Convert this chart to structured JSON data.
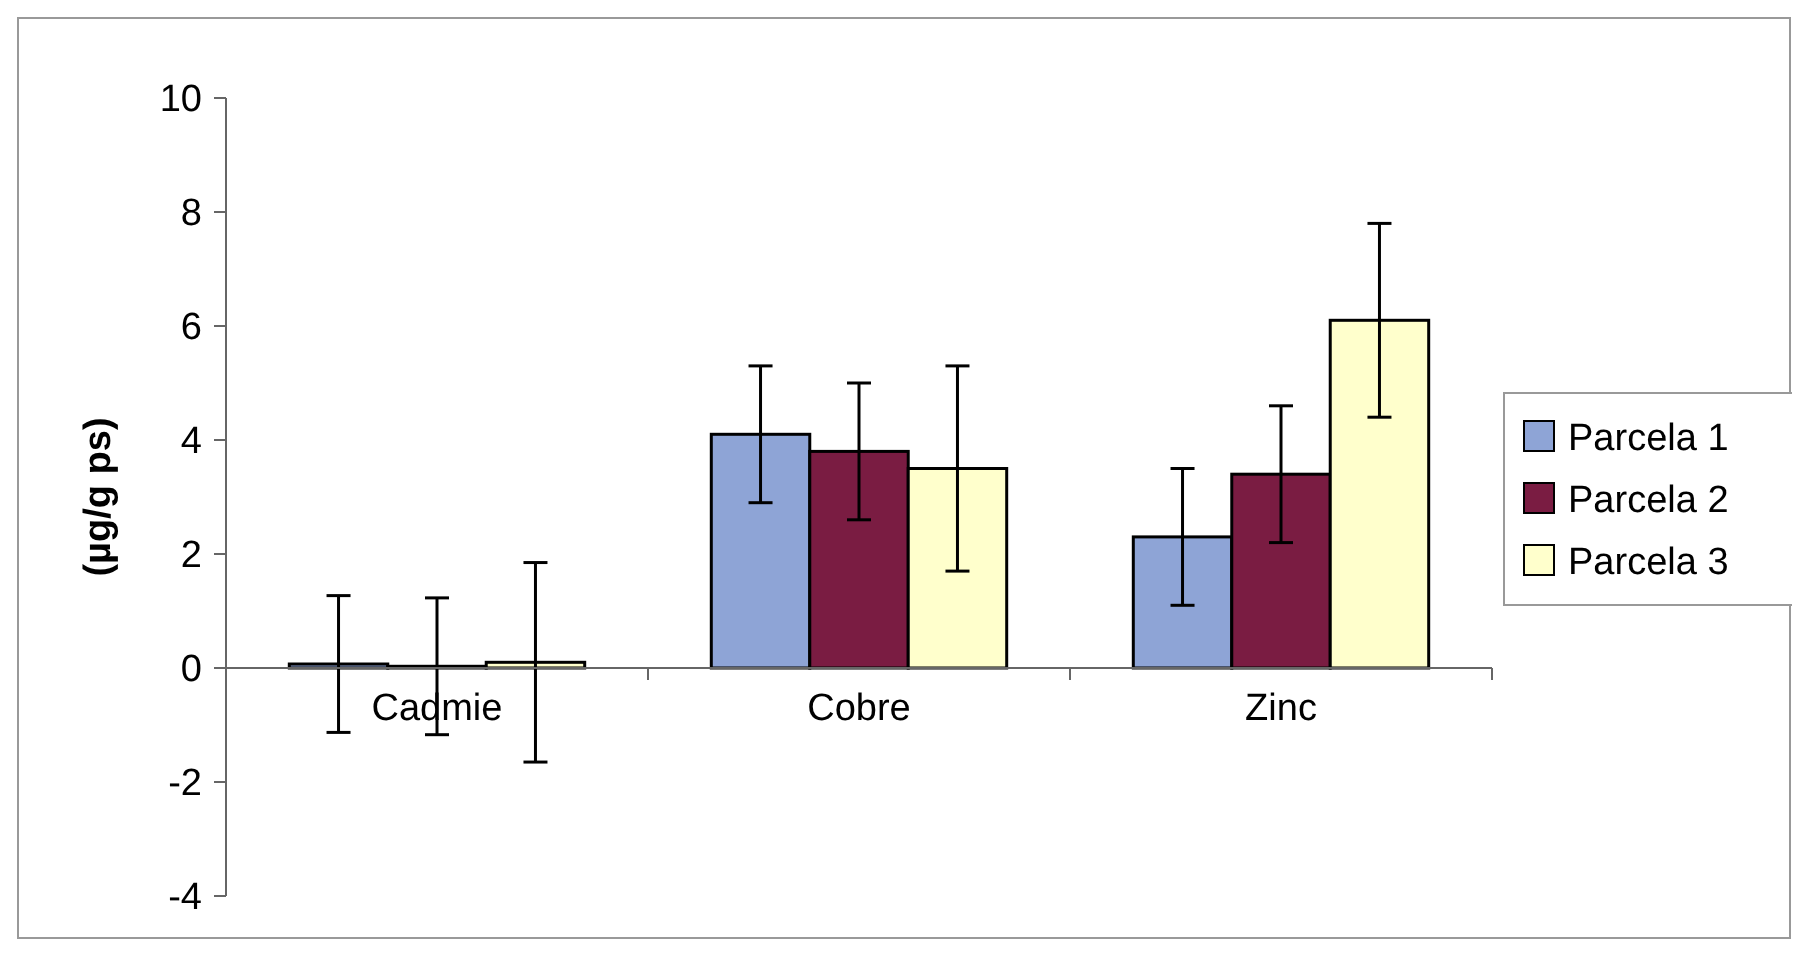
{
  "chart_data": {
    "type": "bar",
    "ylabel": "(µg/g ps)",
    "categories": [
      "Cadmie",
      "Cobre",
      "Zinc"
    ],
    "series": [
      {
        "name": "Parcela 1",
        "color": "#8ea4d6",
        "values": [
          0.07,
          4.1,
          2.3
        ],
        "errors": [
          1.2,
          1.2,
          1.2
        ]
      },
      {
        "name": "Parcela 2",
        "color": "#7a1c42",
        "values": [
          0.03,
          3.8,
          3.4
        ],
        "errors": [
          1.2,
          1.2,
          1.2
        ]
      },
      {
        "name": "Parcela 3",
        "color": "#ffffcc",
        "values": [
          0.1,
          3.5,
          6.1
        ],
        "errors": [
          1.75,
          1.8,
          1.7
        ]
      }
    ],
    "ylim": [
      -4,
      10
    ],
    "yticks": [
      -4,
      -2,
      0,
      2,
      4,
      6,
      8,
      10
    ],
    "grid": false,
    "legend": "right"
  }
}
